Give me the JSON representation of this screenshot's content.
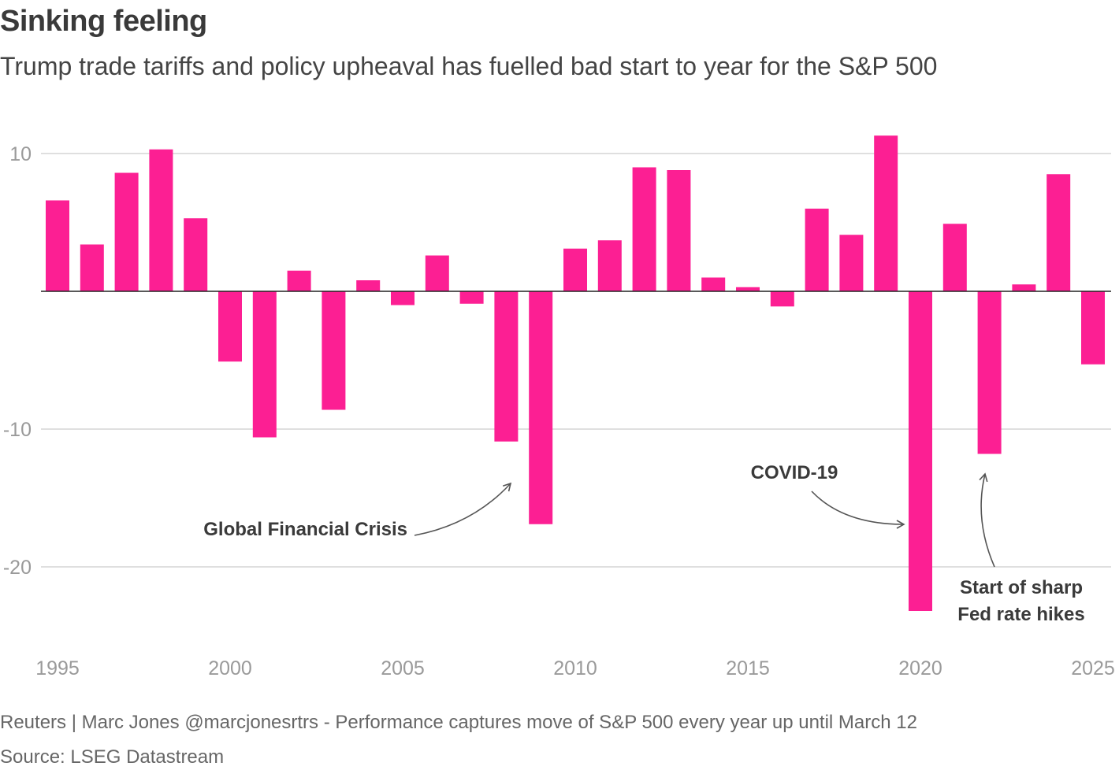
{
  "title": "Sinking feeling",
  "subtitle": "Trump trade tariffs and policy upheaval has fuelled bad start to year for the  S&P 500",
  "footnote": "Reuters | Marc Jones @marcjonesrtrs - Performance captures move of S&P 500 every year up until March 12",
  "source": "Source: LSEG Datastream",
  "colors": {
    "bar": "#fc1f93",
    "grid": "#cccccc",
    "zero": "#222222",
    "tick": "#9a9a9a",
    "annotation": "#3a3a3a",
    "arrow": "#555555"
  },
  "chart_data": {
    "type": "bar",
    "x": [
      1995,
      1996,
      1997,
      1998,
      1999,
      2000,
      2001,
      2002,
      2003,
      2004,
      2005,
      2006,
      2007,
      2008,
      2009,
      2010,
      2011,
      2012,
      2013,
      2014,
      2015,
      2016,
      2017,
      2018,
      2019,
      2020,
      2021,
      2022,
      2023,
      2024,
      2025
    ],
    "values": [
      6.6,
      3.4,
      8.6,
      10.3,
      5.3,
      -5.1,
      -10.6,
      1.5,
      -8.6,
      0.8,
      -1.0,
      2.6,
      -0.9,
      -10.9,
      -16.9,
      3.1,
      3.7,
      9.0,
      8.8,
      1.0,
      0.3,
      -1.1,
      6.0,
      4.1,
      11.3,
      -23.2,
      4.9,
      -11.8,
      0.5,
      8.5,
      -5.3
    ],
    "yticks": [
      10,
      -10,
      -20
    ],
    "ytick_labels": [
      "10",
      "-10",
      "-20"
    ],
    "xticks": [
      1995,
      2000,
      2005,
      2010,
      2015,
      2020,
      2025
    ],
    "xtick_labels": [
      "1995",
      "2000",
      "2005",
      "2010",
      "2015",
      "2020",
      "2025"
    ],
    "ylim": [
      -25,
      12
    ],
    "grid": true,
    "annotations": [
      {
        "text": "Global Financial Crisis",
        "target_year": 2008
      },
      {
        "text": "COVID-19",
        "target_year": 2020
      },
      {
        "text": "Start of sharp",
        "text2": "Fed rate hikes",
        "target_year": 2022
      }
    ]
  }
}
